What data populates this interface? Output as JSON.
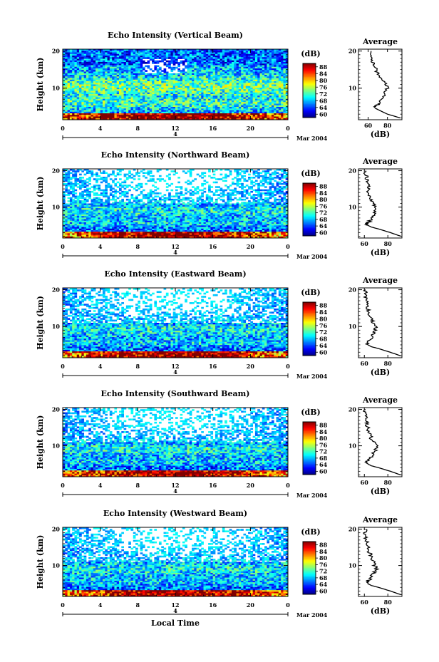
{
  "figure": {
    "xlabel": "Local Time",
    "date_label": "Mar 2004",
    "date_day": "4",
    "colorbar_unit": "(dB)",
    "colorbar_ticks": [
      "88",
      "84",
      "80",
      "76",
      "72",
      "68",
      "64",
      "60"
    ],
    "avg_title": "Average",
    "avg_xlabel": "(dB)",
    "ylabel": "Height (km)"
  },
  "chart_data": [
    {
      "type": "heatmap",
      "title": "Echo Intensity (Vertical Beam)",
      "x_ticks": [
        "0",
        "4",
        "8",
        "12",
        "16",
        "20",
        "0"
      ],
      "y_ticks": [
        "20",
        "10"
      ],
      "xlim": [
        0,
        24
      ],
      "ylim": [
        1.5,
        20.5
      ],
      "colorscale_db": [
        60,
        90
      ],
      "average_profile": {
        "x_ticks": [
          "60",
          "80"
        ],
        "xlim": [
          50,
          95
        ],
        "height_km": [
          2,
          3,
          4,
          4.5,
          5,
          5.5,
          6,
          7,
          8,
          9,
          10,
          11,
          12,
          13,
          14,
          15,
          16,
          17,
          18,
          19,
          20
        ],
        "db": [
          93,
          80,
          72,
          68,
          66,
          70,
          72,
          74,
          76,
          78,
          80,
          78,
          76,
          73,
          70,
          68,
          67,
          65,
          64,
          63,
          63
        ]
      }
    },
    {
      "type": "heatmap",
      "title": "Echo Intensity (Northward Beam)",
      "x_ticks": [
        "0",
        "4",
        "8",
        "12",
        "16",
        "20",
        "0"
      ],
      "y_ticks": [
        "20",
        "10"
      ],
      "xlim": [
        0,
        24
      ],
      "ylim": [
        1.5,
        20.5
      ],
      "colorscale_db": [
        60,
        90
      ],
      "average_profile": {
        "x_ticks": [
          "60",
          "80"
        ],
        "xlim": [
          55,
          92
        ],
        "height_km": [
          2,
          3,
          4,
          4.5,
          5,
          5.5,
          6,
          7,
          8,
          9,
          10,
          11,
          12,
          13,
          14,
          15,
          16,
          17,
          18,
          19,
          20
        ],
        "db": [
          91,
          82,
          72,
          66,
          63,
          62,
          64,
          66,
          68,
          70,
          70,
          68,
          66,
          65,
          64,
          63,
          63,
          62,
          62,
          61,
          61
        ]
      }
    },
    {
      "type": "heatmap",
      "title": "Echo Intensity (Eastward Beam)",
      "x_ticks": [
        "0",
        "4",
        "8",
        "12",
        "16",
        "20",
        "0"
      ],
      "y_ticks": [
        "20",
        "10"
      ],
      "xlim": [
        0,
        24
      ],
      "ylim": [
        1.5,
        20.5
      ],
      "colorscale_db": [
        60,
        90
      ],
      "average_profile": {
        "x_ticks": [
          "60",
          "80"
        ],
        "xlim": [
          55,
          92
        ],
        "height_km": [
          2,
          3,
          4,
          4.5,
          5,
          5.5,
          6,
          7,
          8,
          9,
          10,
          11,
          12,
          13,
          14,
          15,
          16,
          17,
          18,
          19,
          20
        ],
        "db": [
          91,
          82,
          72,
          66,
          63,
          62,
          64,
          66,
          68,
          70,
          69,
          68,
          66,
          65,
          64,
          63,
          62,
          62,
          61,
          61,
          61
        ]
      }
    },
    {
      "type": "heatmap",
      "title": "Echo Intensity (Southward Beam)",
      "x_ticks": [
        "0",
        "4",
        "8",
        "12",
        "16",
        "20",
        "0"
      ],
      "y_ticks": [
        "20",
        "10"
      ],
      "xlim": [
        0,
        24
      ],
      "ylim": [
        1.5,
        20.5
      ],
      "colorscale_db": [
        60,
        90
      ],
      "average_profile": {
        "x_ticks": [
          "60",
          "80"
        ],
        "xlim": [
          55,
          92
        ],
        "height_km": [
          2,
          3,
          4,
          4.5,
          5,
          5.5,
          6,
          7,
          8,
          9,
          10,
          11,
          12,
          13,
          14,
          15,
          16,
          17,
          18,
          19,
          20
        ],
        "db": [
          91,
          82,
          72,
          66,
          63,
          62,
          64,
          66,
          68,
          70,
          70,
          69,
          66,
          65,
          64,
          63,
          62,
          62,
          61,
          61,
          61
        ]
      }
    },
    {
      "type": "heatmap",
      "title": "Echo Intensity (Westward Beam)",
      "x_ticks": [
        "0",
        "4",
        "8",
        "12",
        "16",
        "20",
        "0"
      ],
      "y_ticks": [
        "20",
        "10"
      ],
      "xlim": [
        0,
        24
      ],
      "ylim": [
        1.5,
        20.5
      ],
      "colorscale_db": [
        60,
        90
      ],
      "average_profile": {
        "x_ticks": [
          "60",
          "80"
        ],
        "xlim": [
          55,
          92
        ],
        "height_km": [
          2,
          3,
          4,
          4.5,
          5,
          5.5,
          6,
          7,
          8,
          9,
          10,
          11,
          12,
          13,
          14,
          15,
          16,
          17,
          18,
          19,
          20
        ],
        "db": [
          91,
          82,
          72,
          66,
          63,
          62,
          64,
          66,
          68,
          70,
          69,
          68,
          66,
          65,
          64,
          63,
          62,
          62,
          61,
          61,
          61
        ]
      }
    }
  ]
}
